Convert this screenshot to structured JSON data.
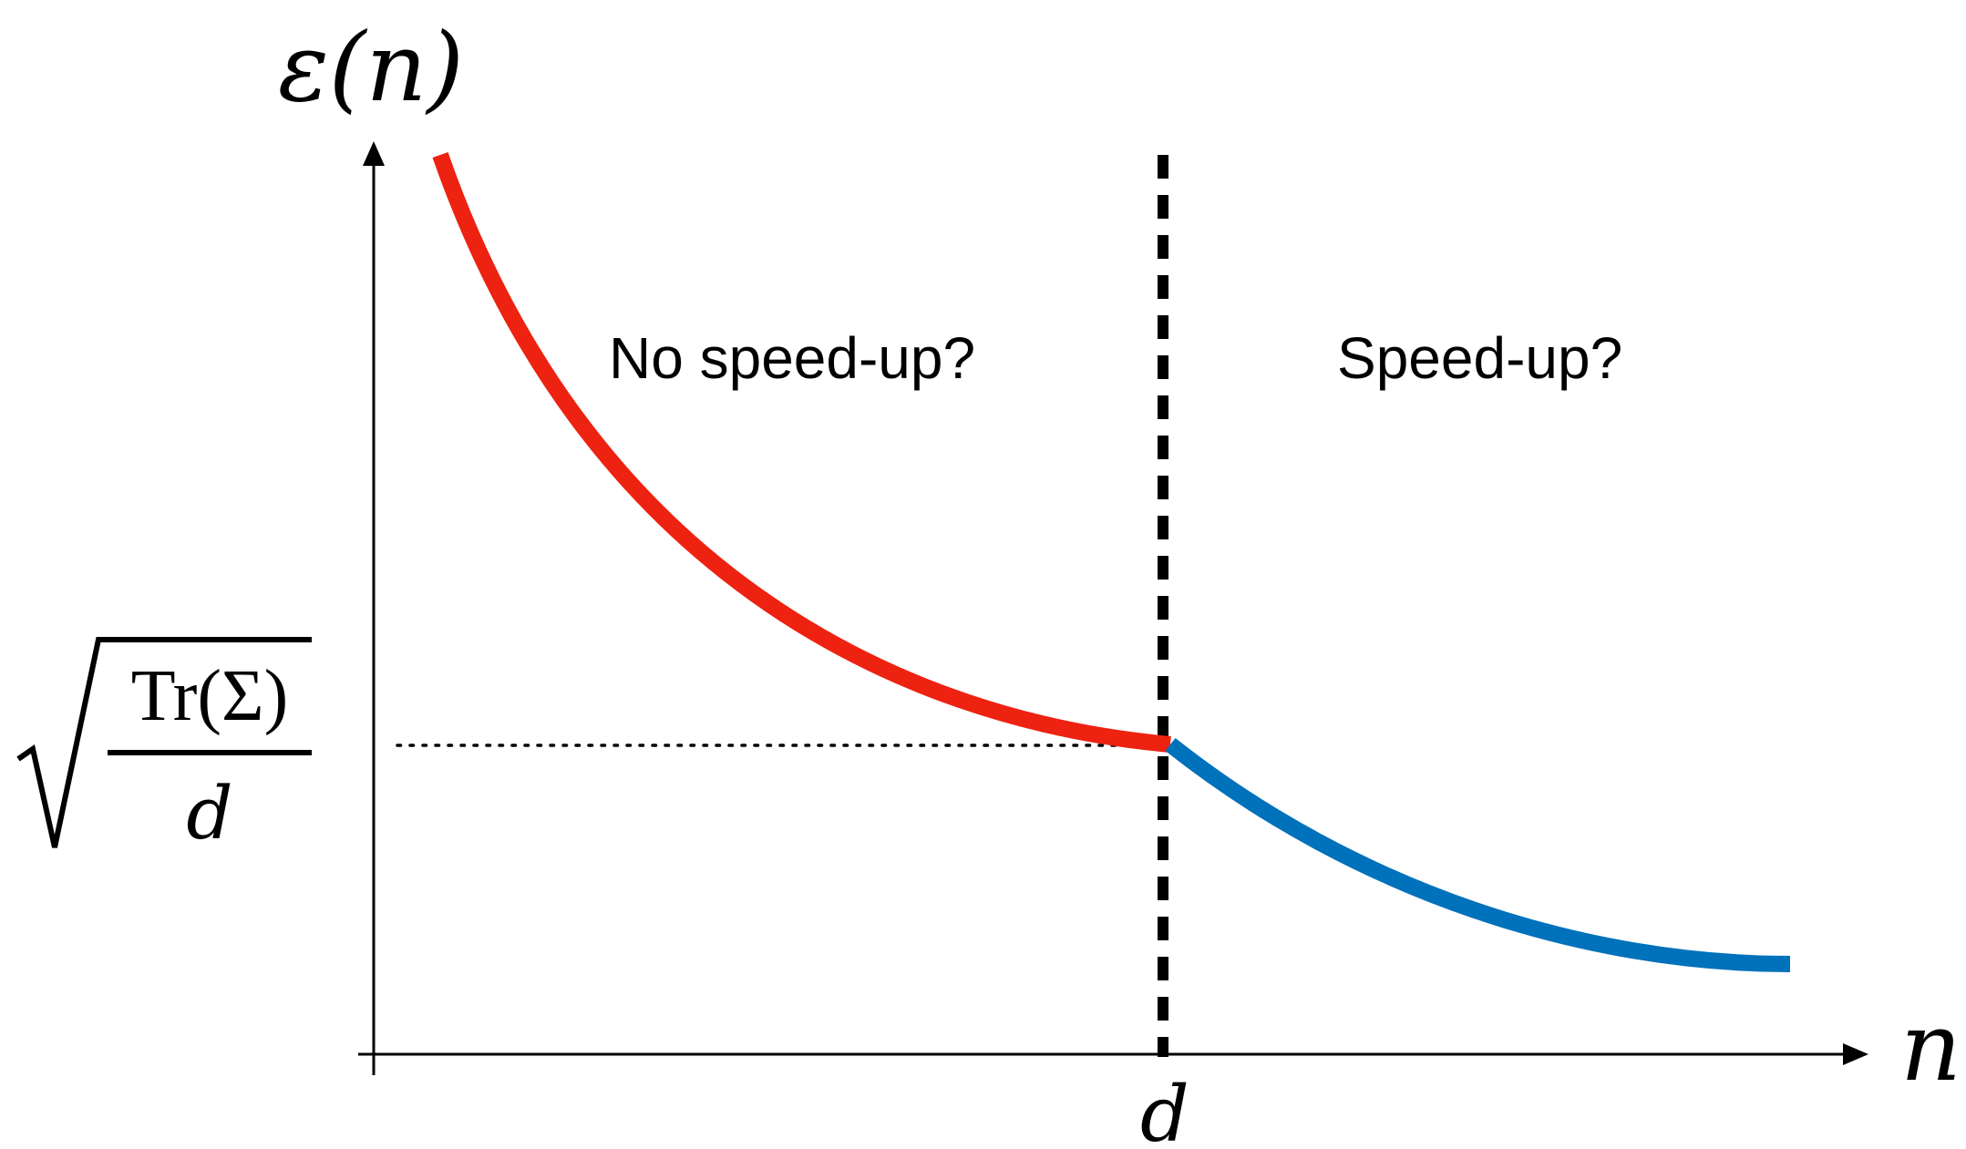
{
  "axes": {
    "y_label": "ε(n)",
    "x_label": "n",
    "x_tick": "d"
  },
  "threshold": {
    "numerator": "Tr(Σ)",
    "denominator": "d"
  },
  "regions": {
    "left": "No speed-up?",
    "right": "Speed-up?"
  },
  "colors": {
    "red_curve": "#ee2211",
    "blue_curve": "#0071bb",
    "axis": "#000000"
  }
}
